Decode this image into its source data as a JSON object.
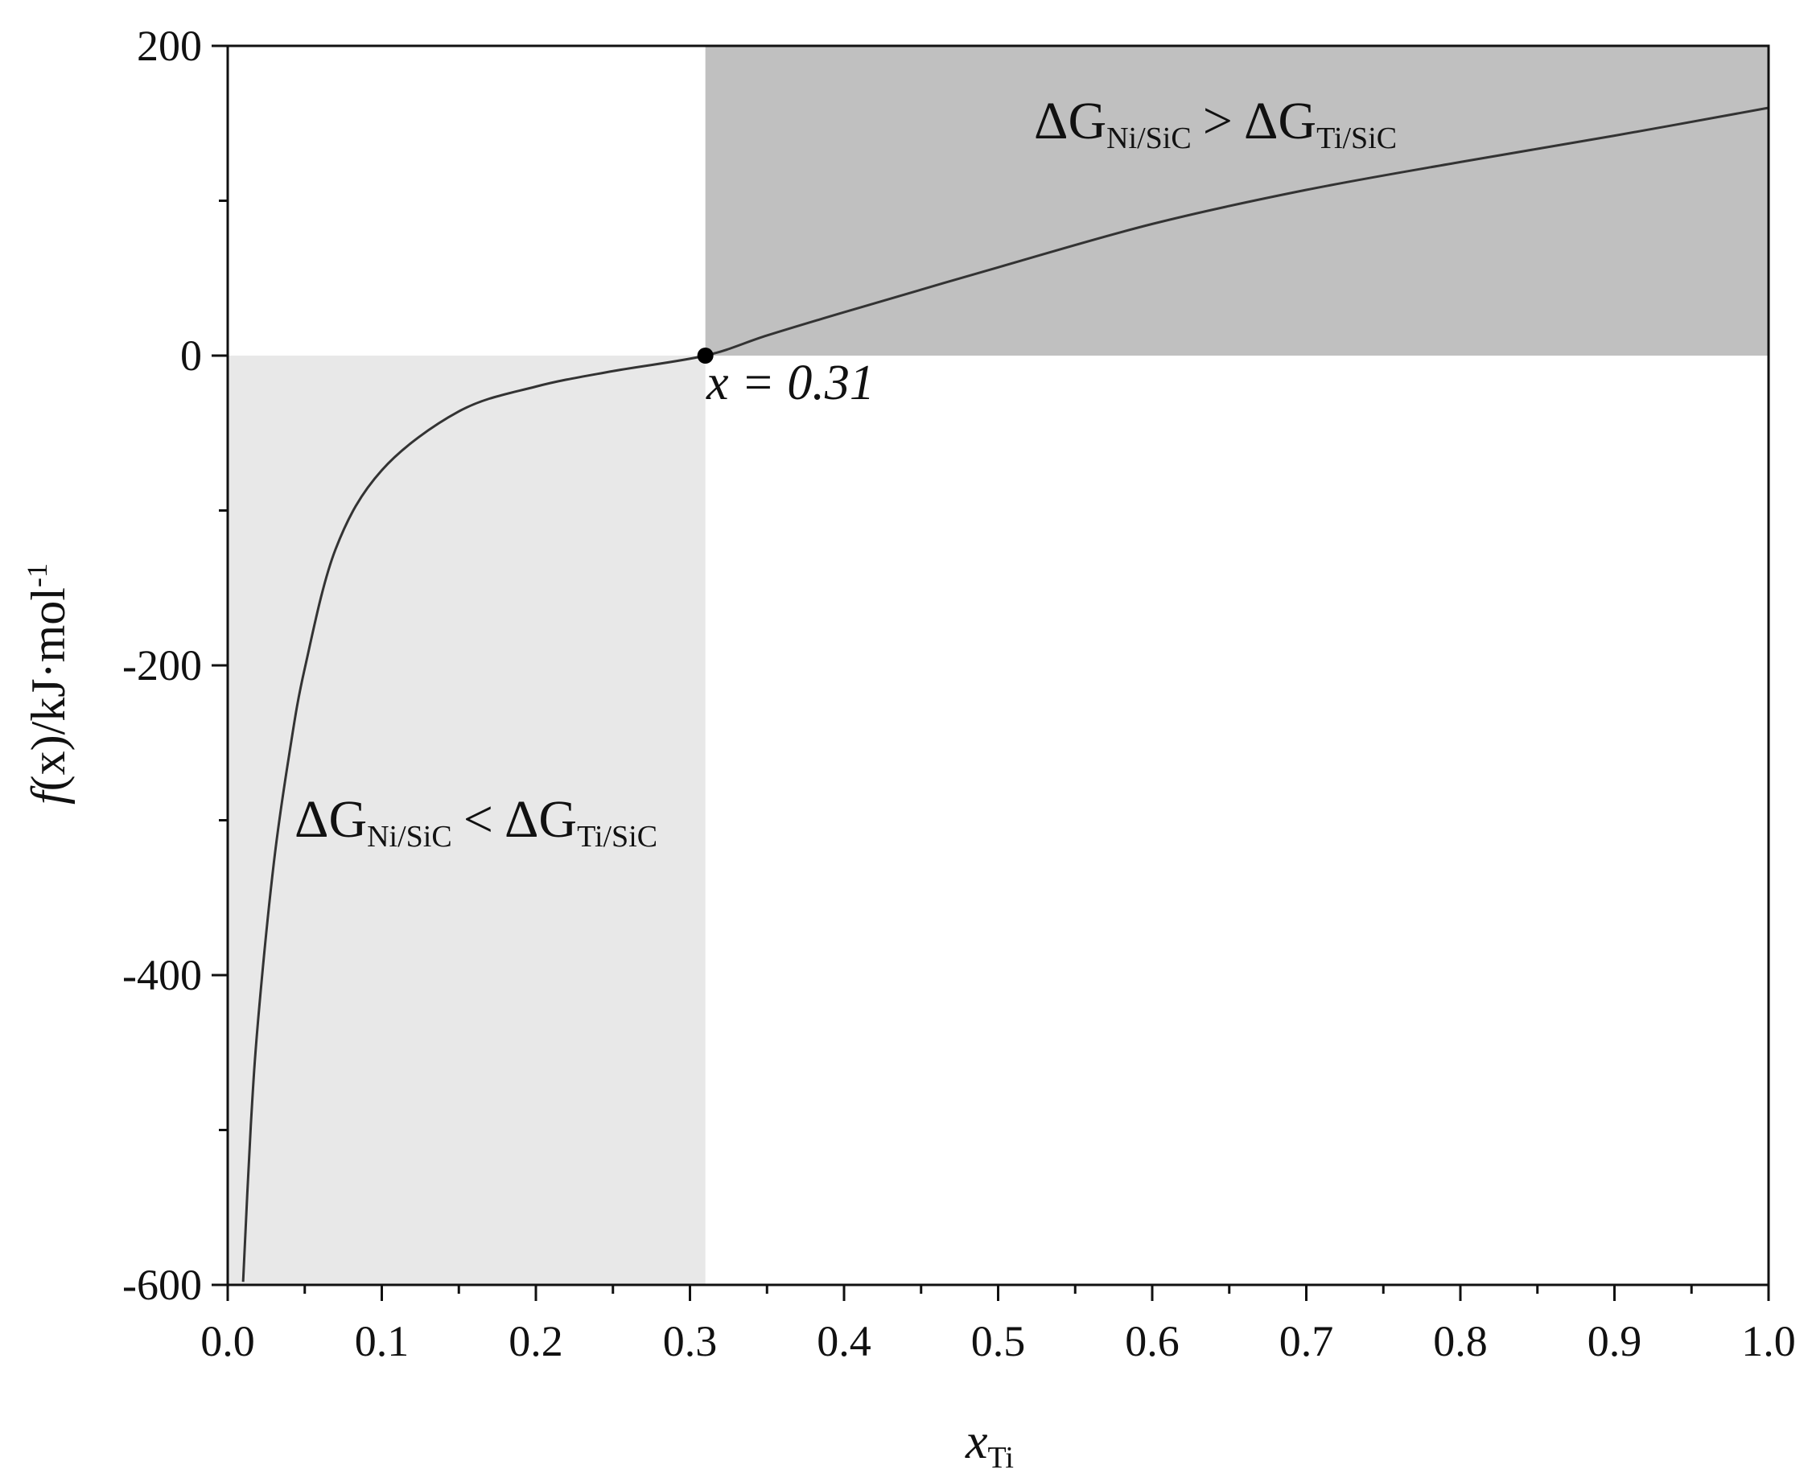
{
  "chart_data": {
    "type": "line",
    "title": "",
    "xlim": [
      0.0,
      1.0
    ],
    "ylim": [
      -600,
      200
    ],
    "x_ticks": [
      "0.0",
      "0.1",
      "0.2",
      "0.3",
      "0.4",
      "0.5",
      "0.6",
      "0.7",
      "0.8",
      "0.9",
      "1.0"
    ],
    "x_tick_values": [
      0.0,
      0.1,
      0.2,
      0.3,
      0.4,
      0.5,
      0.6,
      0.7,
      0.8,
      0.9,
      1.0
    ],
    "y_ticks": [
      "200",
      "0",
      "-200",
      "-400",
      "-600"
    ],
    "y_tick_values": [
      200,
      0,
      -200,
      -400,
      -600
    ],
    "xlabel": {
      "main": "x",
      "sub": "Ti"
    },
    "ylabel": {
      "fx": "f",
      "rest": "(x)/kJ·mol",
      "sup": "-1"
    },
    "series": [
      {
        "x": [
          0.01,
          0.015,
          0.02,
          0.03,
          0.04,
          0.05,
          0.07,
          0.1,
          0.15,
          0.2,
          0.25,
          0.31,
          0.35,
          0.4,
          0.5,
          0.6,
          0.7,
          0.8,
          0.9,
          1.0
        ],
        "y": [
          -598,
          -497,
          -426,
          -327,
          -257,
          -202,
          -125,
          -74,
          -36,
          -20,
          -10,
          0,
          13,
          28,
          57,
          85,
          107,
          125,
          142,
          160
        ]
      }
    ],
    "regions": [
      {
        "x": [
          0.0,
          0.31
        ],
        "y": [
          -600,
          0
        ],
        "color": "#e8e8e8"
      },
      {
        "x": [
          0.31,
          1.0
        ],
        "y": [
          0,
          200
        ],
        "color": "#c0c0c0"
      }
    ],
    "marker": {
      "x": 0.31,
      "y": 0,
      "label": "x = 0.31"
    },
    "annotations": [
      {
        "id": "upper",
        "left": "ΔG",
        "left_sub": "Ni/SiC",
        "op": ">",
        "right": "ΔG",
        "right_sub": "Ti/SiC"
      },
      {
        "id": "lower",
        "left": "ΔG",
        "left_sub": "Ni/SiC",
        "op": "<",
        "right": "ΔG",
        "right_sub": "Ti/SiC"
      }
    ],
    "grid": false,
    "colors": {
      "line": "#333333",
      "axis": "#111111"
    }
  }
}
